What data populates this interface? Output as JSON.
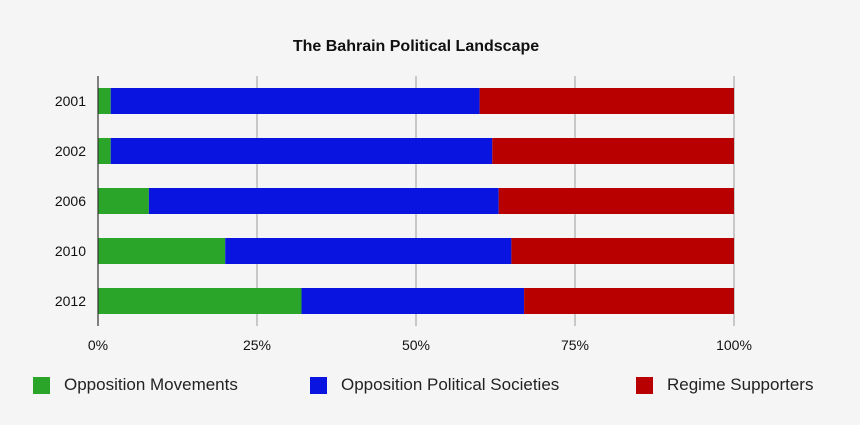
{
  "chart_data": {
    "type": "bar",
    "orientation": "horizontal",
    "stacked": true,
    "title": "The Bahrain Political Landscape",
    "categories": [
      "2001",
      "2002",
      "2006",
      "2010",
      "2012"
    ],
    "series": [
      {
        "name": "Opposition Movements",
        "color": "#2aa52a",
        "values": [
          2,
          2,
          8,
          20,
          32
        ]
      },
      {
        "name": "Opposition Political Societies",
        "color": "#0a14e0",
        "values": [
          58,
          60,
          55,
          45,
          35
        ]
      },
      {
        "name": "Regime Supporters",
        "color": "#b80000",
        "values": [
          40,
          38,
          37,
          35,
          33
        ]
      }
    ],
    "xlim": [
      0,
      100
    ],
    "x_ticks": [
      0,
      25,
      50,
      75,
      100
    ],
    "x_tick_labels": [
      "0%",
      "25%",
      "50%",
      "75%",
      "100%"
    ],
    "grid": "vertical",
    "legend_position": "bottom"
  }
}
